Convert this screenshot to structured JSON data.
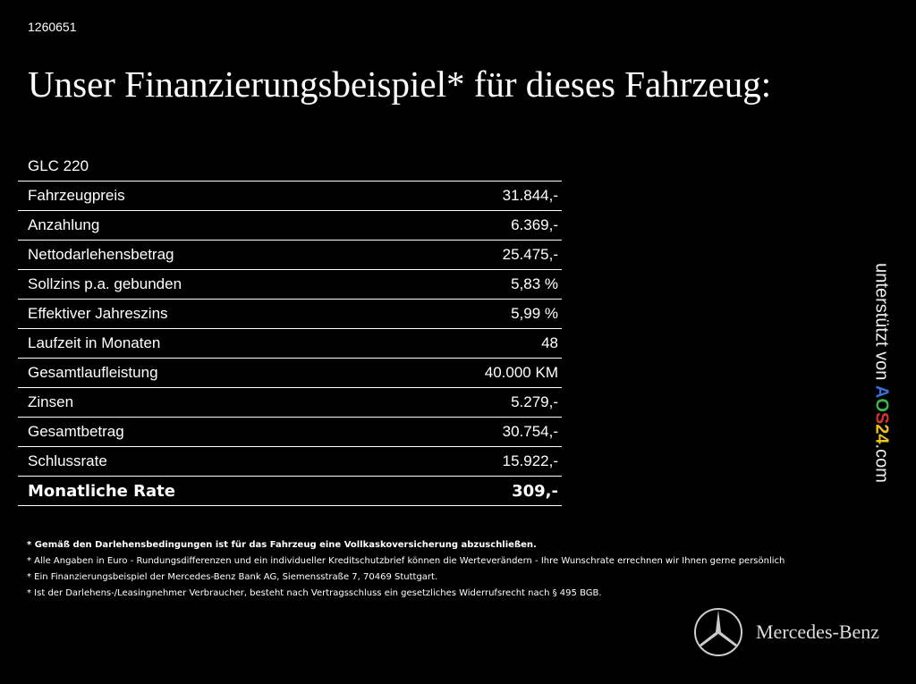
{
  "code": "1260651",
  "title": "Unser Finanzierungsbeispiel* für dieses Fahrzeug:",
  "model": "GLC 220",
  "rows": [
    {
      "label": "Fahrzeugpreis",
      "value": "31.844,-"
    },
    {
      "label": "Anzahlung",
      "value": "6.369,-"
    },
    {
      "label": "Nettodarlehensbetrag",
      "value": "25.475,-"
    },
    {
      "label": "Sollzins p.a. gebunden",
      "value": "5,83 %"
    },
    {
      "label": "Effektiver Jahreszins",
      "value": "5,99 %"
    },
    {
      "label": "Laufzeit in Monaten",
      "value": "48"
    },
    {
      "label": "Gesamtlaufleistung",
      "value": "40.000 KM"
    },
    {
      "label": "Zinsen",
      "value": "5.279,-"
    },
    {
      "label": "Gesamtbetrag",
      "value": "30.754,-"
    },
    {
      "label": "Schlussrate",
      "value": "15.922,-"
    }
  ],
  "total": {
    "label": "Monatliche Rate",
    "value": "309,-"
  },
  "notes": [
    "* Gemäß den Darlehensbedingungen ist für das Fahrzeug eine Vollkaskoversicherung abzuschließen.",
    "* Alle Angaben in Euro - Rundungsdifferenzen und ein individueller Kreditschutzbrief können die Werteverändern - Ihre Wunschrate errechnen wir Ihnen gerne persönlich",
    "* Ein Finanzierungsbeispiel der Mercedes-Benz Bank AG, Siemensstraße 7, 70469 Stuttgart.",
    "* Ist der Darlehens-/Leasingnehmer Verbraucher, besteht nach Vertragsschluss ein gesetzliches Widerrufsrecht nach § 495 BGB."
  ],
  "sponsor": {
    "prefix": "unterstützt von ",
    "brand": [
      "A",
      "O",
      "S",
      "2",
      "4"
    ],
    "suffix": ".com"
  },
  "logo": {
    "text": "Mercedes-Benz"
  }
}
